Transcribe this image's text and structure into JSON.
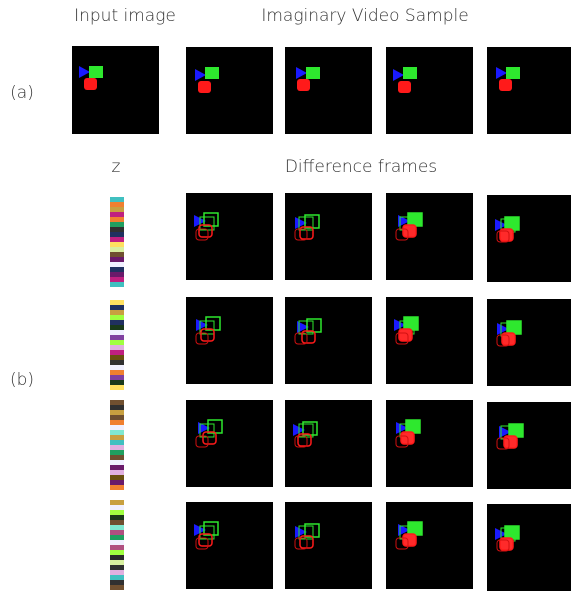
{
  "header": {
    "input_label": "Input image",
    "video_label": "Imaginary Video Sample"
  },
  "panel_a": {
    "label": "(a)"
  },
  "panel_b": {
    "label": "(b)",
    "z_label": "z",
    "diff_label": "Difference frames"
  }
}
